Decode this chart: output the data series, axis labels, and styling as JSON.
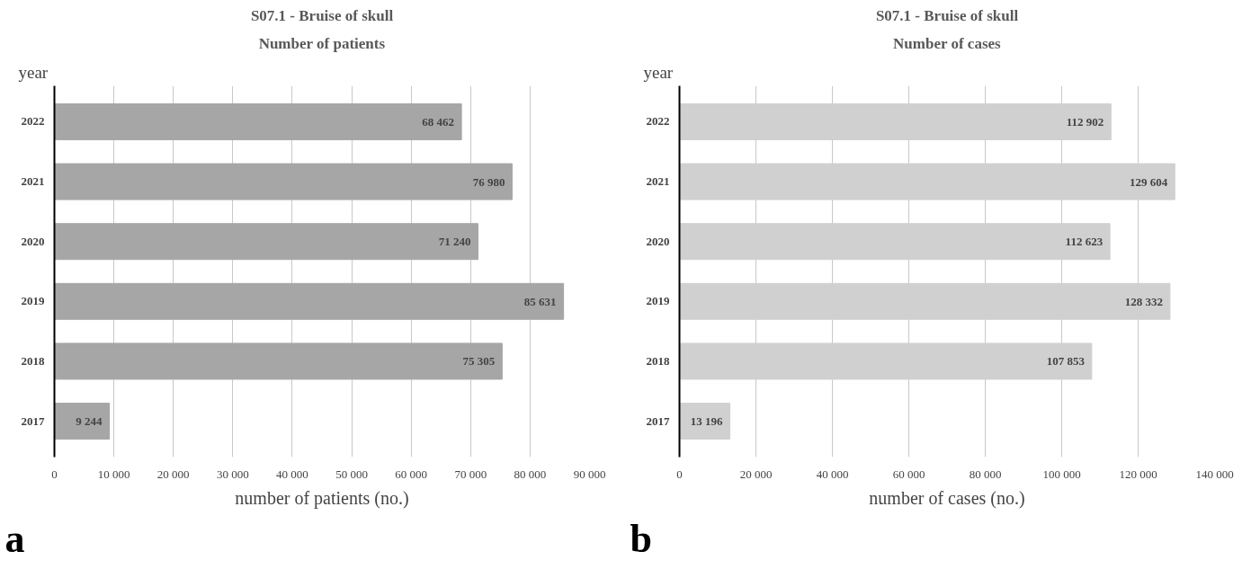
{
  "chart_data": [
    {
      "type": "bar",
      "orientation": "horizontal",
      "title": "S07.1 - Bruise of skull",
      "subtitle": "Number of patients",
      "ylabel": "year",
      "xlabel": "number of patients (no.)",
      "categories": [
        "2022",
        "2021",
        "2020",
        "2019",
        "2018",
        "2017"
      ],
      "values": [
        68462,
        76980,
        71240,
        85631,
        75305,
        9244
      ],
      "color": "#a6a6a6",
      "value_labels": [
        "68 462",
        "76 980",
        "71 240",
        "85 631",
        "75 305",
        "9 244"
      ],
      "xlim": [
        0,
        90000
      ],
      "xticks": [
        0,
        {
          "value": 10000,
          "label": "10 000"
        },
        {
          "value": 20000,
          "label": "20 000"
        },
        {
          "value": 30000,
          "label": "30 000"
        },
        {
          "value": 40000,
          "label": "40 000"
        },
        {
          "value": 50000,
          "label": "50 000"
        },
        {
          "value": 60000,
          "label": "60 000"
        },
        {
          "value": 70000,
          "label": "70 000"
        },
        {
          "value": 80000,
          "label": "80 000"
        },
        {
          "value": 90000,
          "label": "90 000"
        }
      ],
      "grid": "x",
      "annotations": [
        "a"
      ]
    },
    {
      "type": "bar",
      "orientation": "horizontal",
      "title": "S07.1 - Bruise of skull",
      "subtitle": "Number of cases",
      "ylabel": "year",
      "xlabel": "number of cases (no.)",
      "categories": [
        "2022",
        "2021",
        "2020",
        "2019",
        "2018",
        "2017"
      ],
      "values": [
        112902,
        129604,
        112623,
        128332,
        107853,
        13196
      ],
      "color": "#d0d0d0",
      "value_labels": [
        "112 902",
        "129 604",
        "112 623",
        "128 332",
        "107 853",
        "13 196"
      ],
      "xlim": [
        0,
        140000
      ],
      "xticks": [
        0,
        {
          "value": 20000,
          "label": "20 000"
        },
        {
          "value": 40000,
          "label": "40 000"
        },
        {
          "value": 60000,
          "label": "60 000"
        },
        {
          "value": 80000,
          "label": "80 000"
        },
        {
          "value": 100000,
          "label": "100 000"
        },
        {
          "value": 120000,
          "label": "120 000"
        },
        {
          "value": 140000,
          "label": "140 000"
        }
      ],
      "grid": "x",
      "annotations": [
        "b"
      ]
    }
  ]
}
